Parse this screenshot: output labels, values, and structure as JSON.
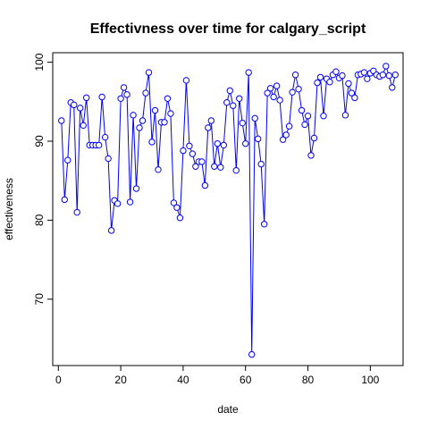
{
  "chart_data": {
    "type": "line",
    "title": "Effectivness over time for calgary_script",
    "xlabel": "date",
    "ylabel": "effectiveness",
    "xlim": [
      -1.8,
      110.5
    ],
    "ylim": [
      61.6,
      101.2
    ],
    "xticks": [
      0,
      20,
      40,
      60,
      80,
      100
    ],
    "yticks": [
      70,
      80,
      90,
      100
    ],
    "grid": false,
    "legend": "none",
    "markers": "open circles joined by lines",
    "colors": {
      "series": "#0000ff"
    },
    "x": [
      1,
      2,
      3,
      4,
      5,
      6,
      7,
      8,
      9,
      10,
      11,
      12,
      13,
      14,
      15,
      16,
      17,
      18,
      19,
      20,
      21,
      22,
      23,
      24,
      25,
      26,
      27,
      28,
      29,
      30,
      31,
      32,
      33,
      34,
      35,
      36,
      37,
      38,
      39,
      40,
      41,
      42,
      43,
      44,
      45,
      46,
      47,
      48,
      49,
      50,
      51,
      52,
      53,
      54,
      55,
      56,
      57,
      58,
      59,
      60,
      61,
      62,
      63,
      64,
      65,
      66,
      67,
      68,
      69,
      70,
      71,
      72,
      73,
      74,
      75,
      76,
      77,
      78,
      79,
      80,
      81,
      82,
      83,
      84,
      85,
      86,
      87,
      88,
      89,
      90,
      91,
      92,
      93,
      94,
      95,
      96,
      97,
      98,
      99,
      100,
      101,
      102,
      103,
      104,
      105,
      106,
      107,
      108
    ],
    "y": [
      92.6,
      82.6,
      87.6,
      94.9,
      94.6,
      81.0,
      94.2,
      92.0,
      95.5,
      89.5,
      89.5,
      89.5,
      89.5,
      95.6,
      90.5,
      87.8,
      78.7,
      82.5,
      82.1,
      95.4,
      96.8,
      95.9,
      82.3,
      93.3,
      84.0,
      91.7,
      92.6,
      96.1,
      98.7,
      89.9,
      93.9,
      86.4,
      92.4,
      92.4,
      95.4,
      93.5,
      82.2,
      81.6,
      80.3,
      88.8,
      97.7,
      89.4,
      88.4,
      86.8,
      87.4,
      87.4,
      84.4,
      91.7,
      92.6,
      86.8,
      89.7,
      86.7,
      89.5,
      94.9,
      96.4,
      94.5,
      86.3,
      95.4,
      92.3,
      89.7,
      98.7,
      63.0,
      92.9,
      90.3,
      87.1,
      79.5,
      96.1,
      96.7,
      95.6,
      97.0,
      95.2,
      90.2,
      90.8,
      91.9,
      96.2,
      98.4,
      96.6,
      93.9,
      92.1,
      93.2,
      88.2,
      90.4,
      97.4,
      98.1,
      93.2,
      97.9,
      97.5,
      98.4,
      98.8,
      98.0,
      98.3,
      93.3,
      97.3,
      96.1,
      95.5,
      98.4,
      98.5,
      98.7,
      97.9,
      98.6,
      98.9,
      98.4,
      98.2,
      98.4,
      99.5,
      98.3,
      96.8,
      98.4
    ]
  }
}
